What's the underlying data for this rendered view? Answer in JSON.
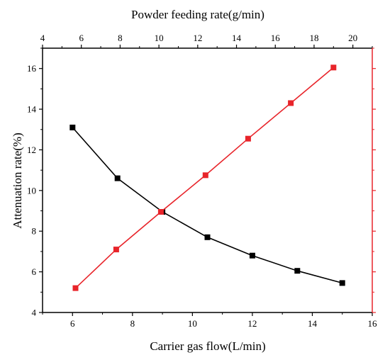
{
  "chart_data": {
    "type": "line",
    "title": "",
    "bottom_axis": {
      "label": "Carrier gas flow(L/min)",
      "range": [
        5,
        16
      ],
      "ticks": [
        6,
        8,
        10,
        12,
        14,
        16
      ],
      "tick_labels": [
        "6",
        "8",
        "10",
        "12",
        "14",
        "16"
      ],
      "color": "#000000"
    },
    "top_axis": {
      "label": "Powder feeding rate(g/min)",
      "range": [
        4,
        21
      ],
      "ticks": [
        4,
        6,
        8,
        10,
        12,
        14,
        16,
        18,
        20
      ],
      "tick_labels": [
        "4",
        "6",
        "8",
        "10",
        "12",
        "14",
        "16",
        "18",
        "20"
      ],
      "color": "#000000"
    },
    "left_axis": {
      "label": "Attenuation rate(%)",
      "range": [
        4,
        17
      ],
      "ticks": [
        4,
        6,
        8,
        10,
        12,
        14,
        16
      ],
      "tick_labels": [
        "4",
        "6",
        "8",
        "10",
        "12",
        "14",
        "16"
      ],
      "color": "#000000"
    },
    "right_axis_color": "#e8242a",
    "grid": false,
    "legend": "none",
    "series": [
      {
        "axis_x": "bottom",
        "color": "#000000",
        "marker": "square",
        "x": [
          6,
          7.5,
          9,
          10.5,
          12,
          13.5,
          15
        ],
        "y": [
          13.1,
          10.6,
          8.95,
          7.7,
          6.8,
          6.05,
          5.45
        ]
      },
      {
        "axis_x": "top",
        "color": "#e8242a",
        "marker": "square",
        "x": [
          5.7,
          7.8,
          10.1,
          12.4,
          14.6,
          16.8,
          19.0
        ],
        "y": [
          5.2,
          7.1,
          8.95,
          10.75,
          12.55,
          14.3,
          16.05
        ]
      }
    ]
  }
}
